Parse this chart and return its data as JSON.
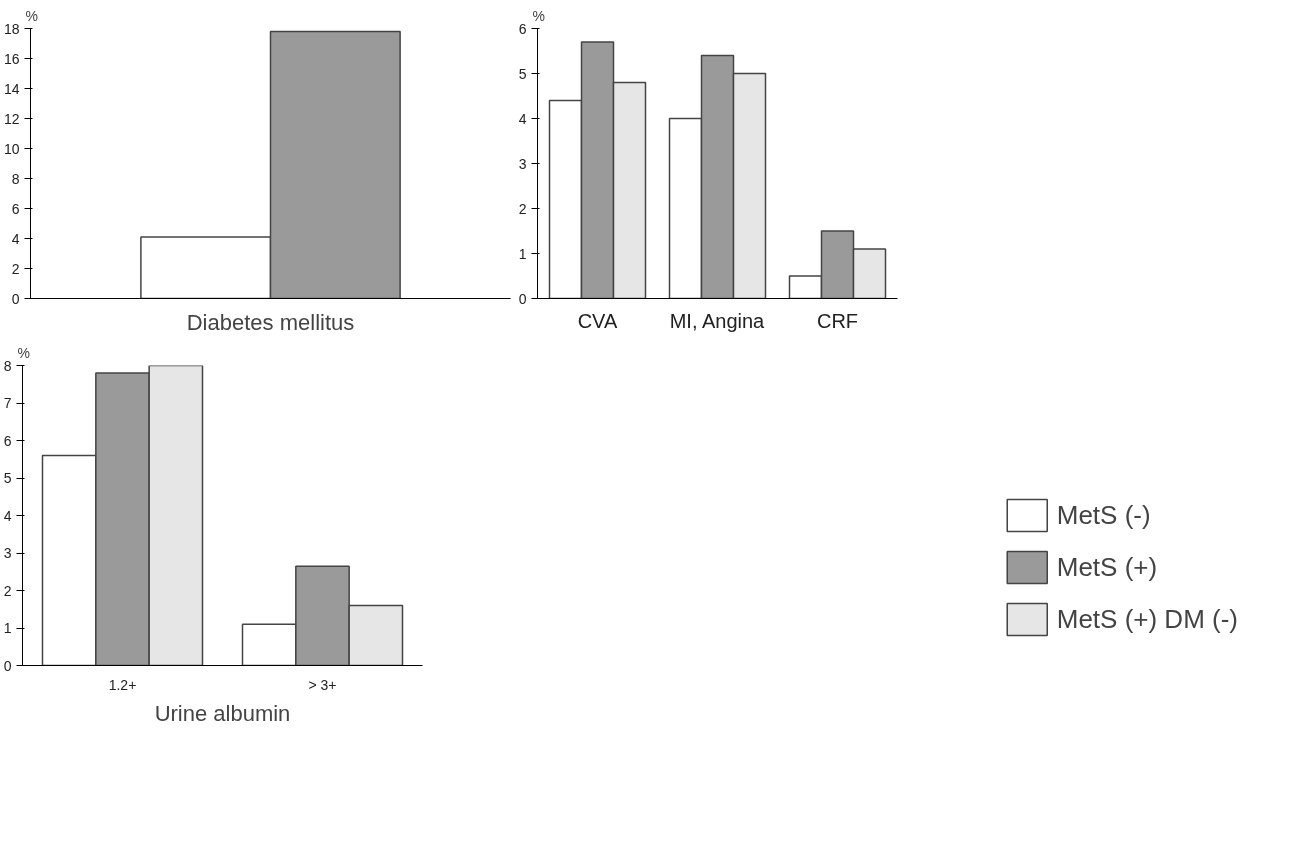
{
  "chart_data": [
    {
      "type": "bar",
      "categories": [
        null
      ],
      "xlabel": "Diabetes mellitus",
      "ylabel": "%",
      "ylim": [
        0,
        18
      ],
      "yticks": [
        0,
        2,
        4,
        6,
        8,
        10,
        12,
        14,
        16,
        18
      ],
      "tick_labels": "y",
      "series": [
        {
          "color": "#ffffff",
          "values": [
            4.1
          ]
        },
        {
          "color": "#9a9a9a",
          "values": [
            17.8
          ]
        }
      ]
    },
    {
      "type": "bar",
      "categories": [
        "CVA",
        "MI, Angina",
        "CRF"
      ],
      "ylabel": "%",
      "ylim": [
        0,
        6
      ],
      "yticks": [
        0,
        1,
        2,
        3,
        4,
        5,
        6
      ],
      "series": [
        {
          "color": "#ffffff",
          "values": [
            4.4,
            4.0,
            0.5
          ]
        },
        {
          "color": "#9a9a9a",
          "values": [
            5.7,
            5.4,
            1.5
          ]
        },
        {
          "color": "#e6e6e6",
          "values": [
            4.8,
            5.0,
            1.1
          ]
        }
      ]
    },
    {
      "type": "bar",
      "categories": [
        "1.2+",
        "> 3+"
      ],
      "xlabel": "Urine albumin",
      "ylabel": "%",
      "ylim": [
        0,
        8
      ],
      "yticks": [
        0,
        1,
        2,
        3,
        4,
        5,
        6,
        7,
        8
      ],
      "legend": "right",
      "series": [
        {
          "name": "MetS (-)",
          "color": "#ffffff",
          "values": [
            5.6,
            1.1
          ]
        },
        {
          "name": "MetS (+)",
          "color": "#9a9a9a",
          "values": [
            7.8,
            2.65
          ]
        },
        {
          "name": "MetS (+) DM (-)",
          "color": "#e6e6e6",
          "values": [
            8.0,
            1.6
          ]
        }
      ]
    }
  ]
}
